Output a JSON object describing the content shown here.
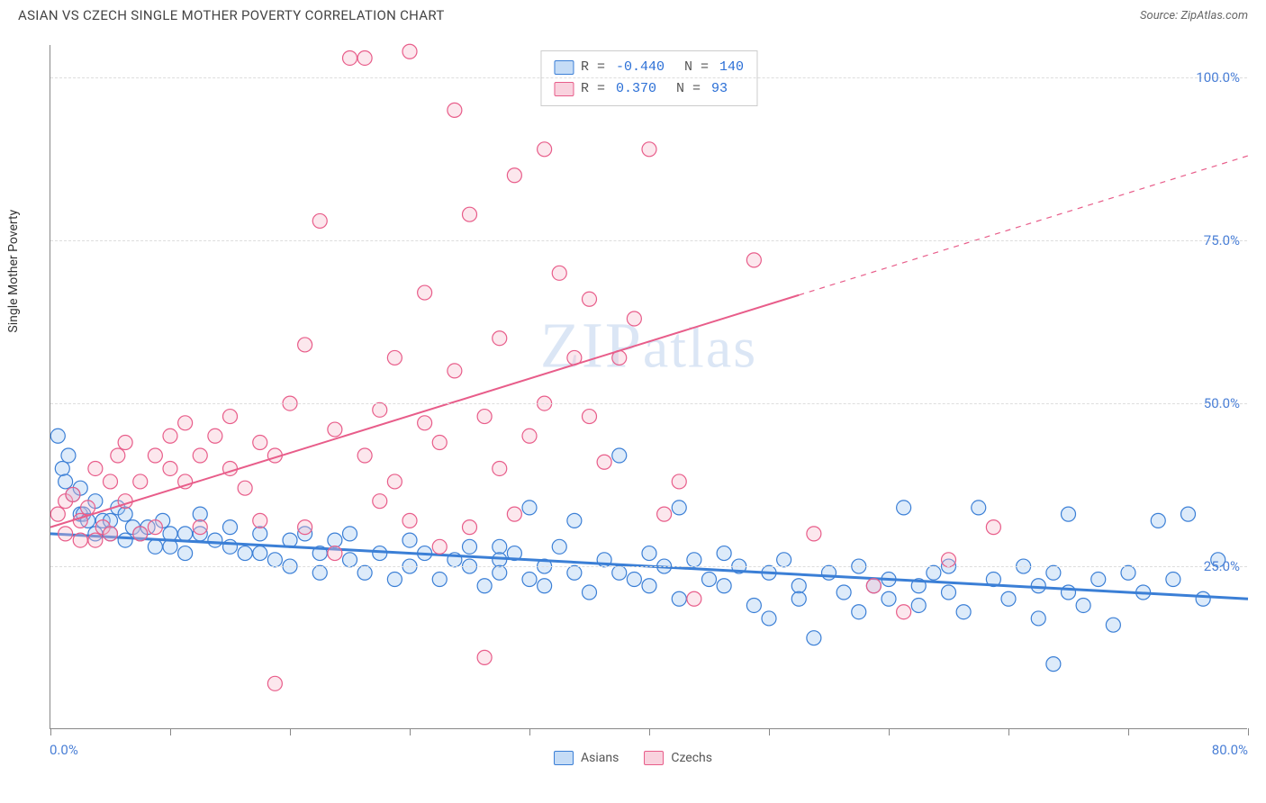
{
  "title": "ASIAN VS CZECH SINGLE MOTHER POVERTY CORRELATION CHART",
  "source_prefix": "Source: ",
  "source_name": "ZipAtlas.com",
  "ylabel": "Single Mother Poverty",
  "watermark_text": "ZIPatlas",
  "chart": {
    "type": "scatter",
    "xlim": [
      0,
      80
    ],
    "ylim": [
      0,
      105
    ],
    "x_tick_positions": [
      0,
      8,
      16,
      24,
      32,
      40,
      48,
      56,
      64,
      72,
      80
    ],
    "y_ticks": [
      25,
      50,
      75,
      100
    ],
    "y_tick_labels": [
      "25.0%",
      "50.0%",
      "75.0%",
      "100.0%"
    ],
    "x_origin_label": "0.0%",
    "x_max_label": "80.0%",
    "grid_color": "#dddddd",
    "background_color": "#ffffff",
    "axis_color": "#888888",
    "marker_radius": 8,
    "marker_stroke_width": 1.2,
    "marker_fill_opacity": 0.35,
    "series": [
      {
        "name": "Asians",
        "color_stroke": "#3b7fd6",
        "color_fill": "#9ec5f0",
        "trend": {
          "x1": 0,
          "y1": 30,
          "x2": 80,
          "y2": 20,
          "solid_to_x": 80,
          "width": 3
        },
        "R": "-0.440",
        "N": "140",
        "points": [
          [
            0.5,
            45
          ],
          [
            0.8,
            40
          ],
          [
            1,
            38
          ],
          [
            1.2,
            42
          ],
          [
            1.5,
            36
          ],
          [
            2,
            33
          ],
          [
            2,
            37
          ],
          [
            2.2,
            33
          ],
          [
            2.5,
            32
          ],
          [
            3,
            35
          ],
          [
            3,
            30
          ],
          [
            3.5,
            32
          ],
          [
            4,
            32
          ],
          [
            4,
            30
          ],
          [
            4.5,
            34
          ],
          [
            5,
            33
          ],
          [
            5,
            29
          ],
          [
            5.5,
            31
          ],
          [
            6,
            30
          ],
          [
            6.5,
            31
          ],
          [
            7,
            28
          ],
          [
            7.5,
            32
          ],
          [
            8,
            28
          ],
          [
            8,
            30
          ],
          [
            9,
            30
          ],
          [
            9,
            27
          ],
          [
            10,
            33
          ],
          [
            10,
            30
          ],
          [
            11,
            29
          ],
          [
            12,
            31
          ],
          [
            12,
            28
          ],
          [
            13,
            27
          ],
          [
            14,
            30
          ],
          [
            14,
            27
          ],
          [
            15,
            26
          ],
          [
            16,
            29
          ],
          [
            16,
            25
          ],
          [
            17,
            30
          ],
          [
            18,
            27
          ],
          [
            18,
            24
          ],
          [
            19,
            29
          ],
          [
            20,
            30
          ],
          [
            20,
            26
          ],
          [
            21,
            24
          ],
          [
            22,
            27
          ],
          [
            23,
            23
          ],
          [
            24,
            25
          ],
          [
            24,
            29
          ],
          [
            25,
            27
          ],
          [
            26,
            23
          ],
          [
            27,
            26
          ],
          [
            28,
            25
          ],
          [
            28,
            28
          ],
          [
            29,
            22
          ],
          [
            30,
            28
          ],
          [
            30,
            26
          ],
          [
            30,
            24
          ],
          [
            31,
            27
          ],
          [
            32,
            34
          ],
          [
            32,
            23
          ],
          [
            33,
            25
          ],
          [
            33,
            22
          ],
          [
            34,
            28
          ],
          [
            35,
            32
          ],
          [
            35,
            24
          ],
          [
            36,
            21
          ],
          [
            37,
            26
          ],
          [
            38,
            24
          ],
          [
            38,
            42
          ],
          [
            39,
            23
          ],
          [
            40,
            27
          ],
          [
            40,
            22
          ],
          [
            41,
            25
          ],
          [
            42,
            34
          ],
          [
            42,
            20
          ],
          [
            43,
            26
          ],
          [
            44,
            23
          ],
          [
            45,
            22
          ],
          [
            45,
            27
          ],
          [
            46,
            25
          ],
          [
            47,
            19
          ],
          [
            48,
            17
          ],
          [
            48,
            24
          ],
          [
            49,
            26
          ],
          [
            50,
            22
          ],
          [
            50,
            20
          ],
          [
            51,
            14
          ],
          [
            52,
            24
          ],
          [
            53,
            21
          ],
          [
            54,
            25
          ],
          [
            54,
            18
          ],
          [
            55,
            22
          ],
          [
            56,
            23
          ],
          [
            56,
            20
          ],
          [
            57,
            34
          ],
          [
            58,
            22
          ],
          [
            58,
            19
          ],
          [
            59,
            24
          ],
          [
            60,
            21
          ],
          [
            60,
            25
          ],
          [
            61,
            18
          ],
          [
            62,
            34
          ],
          [
            63,
            23
          ],
          [
            64,
            20
          ],
          [
            65,
            25
          ],
          [
            66,
            22
          ],
          [
            66,
            17
          ],
          [
            67,
            24
          ],
          [
            67,
            10
          ],
          [
            68,
            33
          ],
          [
            68,
            21
          ],
          [
            69,
            19
          ],
          [
            70,
            23
          ],
          [
            71,
            16
          ],
          [
            72,
            24
          ],
          [
            73,
            21
          ],
          [
            74,
            32
          ],
          [
            75,
            23
          ],
          [
            76,
            33
          ],
          [
            77,
            20
          ],
          [
            78,
            26
          ]
        ]
      },
      {
        "name": "Czechs",
        "color_stroke": "#e85d8a",
        "color_fill": "#f7b9cb",
        "trend": {
          "x1": 0,
          "y1": 31,
          "x2": 80,
          "y2": 88,
          "solid_to_x": 50,
          "width": 2
        },
        "R": " 0.370",
        "N": " 93",
        "points": [
          [
            0.5,
            33
          ],
          [
            1,
            35
          ],
          [
            1,
            30
          ],
          [
            1.5,
            36
          ],
          [
            2,
            32
          ],
          [
            2,
            29
          ],
          [
            2.5,
            34
          ],
          [
            3,
            29
          ],
          [
            3,
            40
          ],
          [
            3.5,
            31
          ],
          [
            4,
            38
          ],
          [
            4,
            30
          ],
          [
            4.5,
            42
          ],
          [
            5,
            35
          ],
          [
            5,
            44
          ],
          [
            6,
            30
          ],
          [
            6,
            38
          ],
          [
            7,
            42
          ],
          [
            7,
            31
          ],
          [
            8,
            40
          ],
          [
            8,
            45
          ],
          [
            9,
            38
          ],
          [
            9,
            47
          ],
          [
            10,
            31
          ],
          [
            10,
            42
          ],
          [
            11,
            45
          ],
          [
            12,
            40
          ],
          [
            12,
            48
          ],
          [
            13,
            37
          ],
          [
            14,
            44
          ],
          [
            14,
            32
          ],
          [
            15,
            42
          ],
          [
            15,
            7
          ],
          [
            16,
            50
          ],
          [
            17,
            31
          ],
          [
            17,
            59
          ],
          [
            18,
            78
          ],
          [
            19,
            27
          ],
          [
            19,
            46
          ],
          [
            20,
            103
          ],
          [
            21,
            42
          ],
          [
            21,
            103
          ],
          [
            22,
            35
          ],
          [
            22,
            49
          ],
          [
            23,
            38
          ],
          [
            23,
            57
          ],
          [
            24,
            104
          ],
          [
            24,
            32
          ],
          [
            25,
            47
          ],
          [
            25,
            67
          ],
          [
            26,
            44
          ],
          [
            26,
            28
          ],
          [
            27,
            55
          ],
          [
            27,
            95
          ],
          [
            28,
            31
          ],
          [
            28,
            79
          ],
          [
            29,
            48
          ],
          [
            29,
            11
          ],
          [
            30,
            40
          ],
          [
            30,
            60
          ],
          [
            31,
            85
          ],
          [
            31,
            33
          ],
          [
            32,
            45
          ],
          [
            33,
            50
          ],
          [
            33,
            89
          ],
          [
            34,
            70
          ],
          [
            35,
            57
          ],
          [
            36,
            48
          ],
          [
            36,
            66
          ],
          [
            37,
            41
          ],
          [
            38,
            57
          ],
          [
            39,
            63
          ],
          [
            40,
            89
          ],
          [
            41,
            33
          ],
          [
            42,
            38
          ],
          [
            43,
            20
          ],
          [
            47,
            72
          ],
          [
            51,
            30
          ],
          [
            55,
            22
          ],
          [
            57,
            18
          ],
          [
            60,
            26
          ],
          [
            63,
            31
          ]
        ]
      }
    ]
  },
  "stats_legend_rows": [
    {
      "swatch_fill": "#c5dcf6",
      "swatch_stroke": "#3b7fd6",
      "R": "-0.440",
      "N": "140"
    },
    {
      "swatch_fill": "#f9d2de",
      "swatch_stroke": "#e85d8a",
      "R": " 0.370",
      "N": " 93"
    }
  ],
  "bottom_legend": [
    {
      "label": "Asians",
      "swatch_fill": "#c5dcf6",
      "swatch_stroke": "#3b7fd6"
    },
    {
      "label": "Czechs",
      "swatch_fill": "#f9d2de",
      "swatch_stroke": "#e85d8a"
    }
  ]
}
